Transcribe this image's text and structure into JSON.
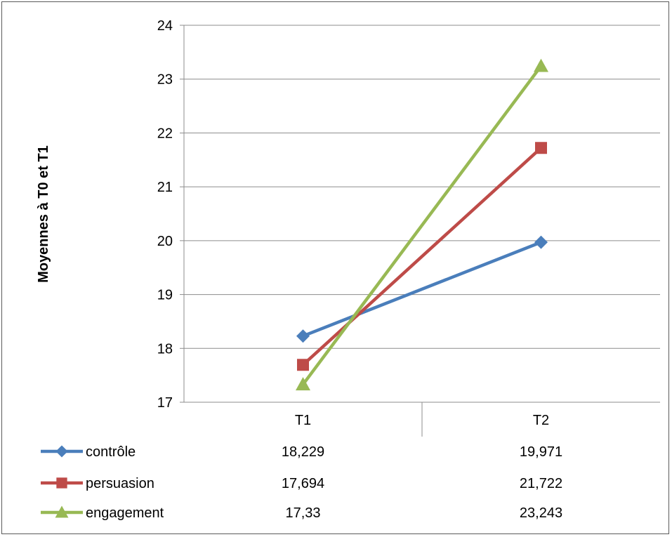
{
  "chart_data": {
    "type": "line",
    "title": "",
    "xlabel": "",
    "ylabel": "Moyennes à T0 et T1",
    "categories": [
      "T1",
      "T2"
    ],
    "ylim": [
      17,
      24
    ],
    "yticks": [
      "17",
      "18",
      "19",
      "20",
      "21",
      "22",
      "23",
      "24"
    ],
    "grid": true,
    "legend": "data-table-left",
    "series": [
      {
        "name": "contrôle",
        "values": [
          18.229,
          19.971
        ],
        "labels": [
          "18,229",
          "19,971"
        ],
        "color": "#4a7ebb",
        "marker": "diamond"
      },
      {
        "name": "persuasion",
        "values": [
          17.694,
          21.722
        ],
        "labels": [
          "17,694",
          "21,722"
        ],
        "color": "#be4b48",
        "marker": "square"
      },
      {
        "name": "engagement",
        "values": [
          17.33,
          23.243
        ],
        "labels": [
          "17,33",
          "23,243"
        ],
        "color": "#98b954",
        "marker": "triangle"
      }
    ]
  }
}
